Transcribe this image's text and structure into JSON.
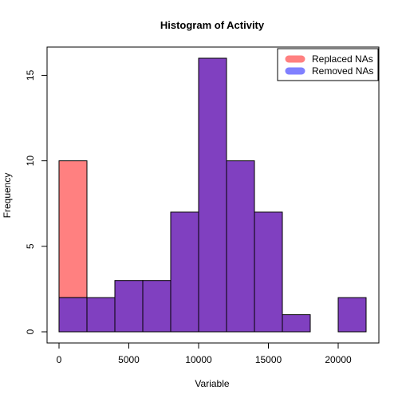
{
  "chart_data": {
    "type": "bar",
    "title": "Histogram of Activity",
    "xlabel": "Variable",
    "ylabel": "Frequency",
    "xlim": [
      0,
      22000
    ],
    "ylim": [
      0,
      16
    ],
    "x_ticks": [
      0,
      5000,
      10000,
      15000,
      20000
    ],
    "y_ticks": [
      0,
      5,
      10,
      15
    ],
    "bin_edges": [
      0,
      2000,
      4000,
      6000,
      8000,
      10000,
      12000,
      14000,
      16000,
      18000,
      20000,
      22000
    ],
    "series": [
      {
        "name": "Replaced NAs",
        "color": "#ff8080",
        "values": [
          10,
          2,
          3,
          3,
          7,
          16,
          10,
          7,
          1,
          0,
          2
        ]
      },
      {
        "name": "Removed NAs",
        "color": "#8080ff",
        "values": [
          2,
          2,
          3,
          3,
          7,
          16,
          10,
          7,
          1,
          0,
          2
        ]
      }
    ],
    "overlap_color": "#8040c0",
    "legend_position": "top-right",
    "grid": false
  }
}
